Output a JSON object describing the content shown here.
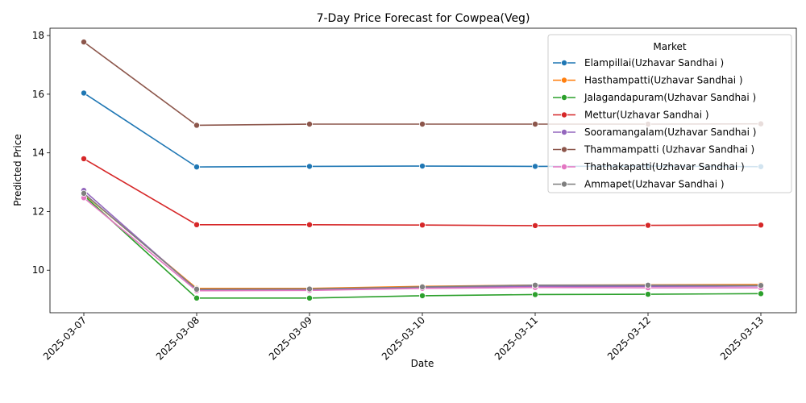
{
  "chart_data": {
    "type": "line",
    "title": "7-Day Price Forecast for Cowpea(Veg)",
    "xlabel": "Date",
    "ylabel": "Predicted Price",
    "categories": [
      "2025-03-07",
      "2025-03-08",
      "2025-03-09",
      "2025-03-10",
      "2025-03-11",
      "2025-03-12",
      "2025-03-13"
    ],
    "ylim": [
      8.55,
      18.25
    ],
    "yticks": [
      10,
      12,
      14,
      16,
      18
    ],
    "grid": false,
    "legend": {
      "title": "Market",
      "placement": "top-right"
    },
    "series": [
      {
        "name": "Elampillai(Uzhavar Sandhai )",
        "color": "#1f77b4",
        "values": [
          16.04,
          13.52,
          13.54,
          13.55,
          13.54,
          13.55,
          13.53
        ]
      },
      {
        "name": "Hasthampatti(Uzhavar Sandhai )",
        "color": "#ff7f0e",
        "values": [
          12.6,
          9.38,
          9.38,
          9.45,
          9.49,
          9.5,
          9.51
        ]
      },
      {
        "name": "Jalagandapuram(Uzhavar Sandhai )",
        "color": "#2ca02c",
        "values": [
          12.55,
          9.05,
          9.05,
          9.13,
          9.17,
          9.18,
          9.2
        ]
      },
      {
        "name": "Mettur(Uzhavar Sandhai )",
        "color": "#d62728",
        "values": [
          13.8,
          11.55,
          11.55,
          11.54,
          11.52,
          11.53,
          11.54
        ]
      },
      {
        "name": "Sooramangalam(Uzhavar Sandhai )",
        "color": "#9467bd",
        "values": [
          12.72,
          9.33,
          9.34,
          9.41,
          9.45,
          9.45,
          9.46
        ]
      },
      {
        "name": "Thammampatti (Uzhavar Sandhai )",
        "color": "#8c564b",
        "values": [
          17.78,
          14.94,
          14.98,
          14.98,
          14.98,
          14.98,
          14.99
        ]
      },
      {
        "name": "Thathakapatti(Uzhavar Sandhai )",
        "color": "#e377c2",
        "values": [
          12.47,
          9.3,
          9.31,
          9.38,
          9.41,
          9.4,
          9.4
        ]
      },
      {
        "name": "Ammapet(Uzhavar Sandhai )",
        "color": "#7f7f7f",
        "values": [
          12.62,
          9.35,
          9.36,
          9.43,
          9.49,
          9.49,
          9.48
        ]
      }
    ]
  }
}
